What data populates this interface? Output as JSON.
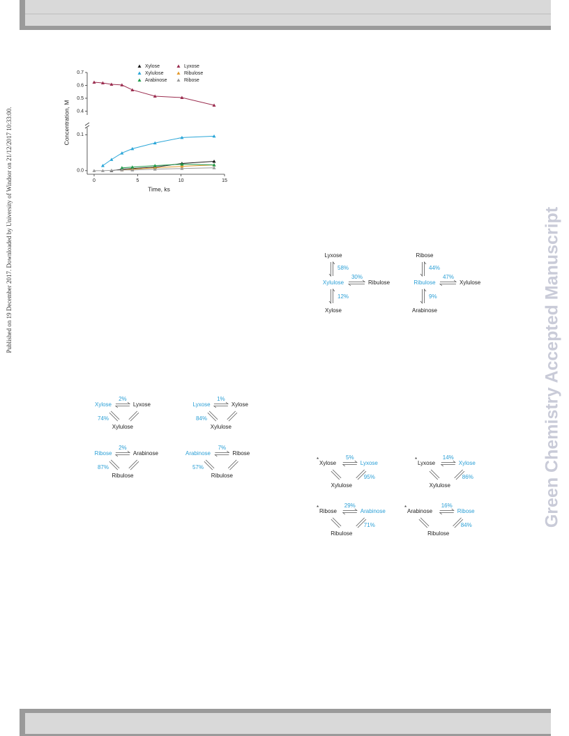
{
  "side_note": "Published on 19 December 2017. Downloaded by University of Windsor on 21/12/2017 10:33:00.",
  "watermark": "Green Chemistry Accepted Manuscript",
  "chart_data": {
    "type": "line",
    "x": [
      0,
      1,
      2,
      3.2,
      4.4,
      7,
      10.1,
      13.8
    ],
    "series": [
      {
        "name": "Xylose",
        "color": "#1a1a1a",
        "values": [
          null,
          null,
          0,
          0.004,
          0.006,
          0.01,
          0.02,
          0.026
        ]
      },
      {
        "name": "Lyxose",
        "color": "#9b2d4f",
        "values": [
          0.624,
          0.619,
          0.608,
          0.603,
          0.565,
          0.516,
          0.505,
          0.446
        ]
      },
      {
        "name": "Xylulose",
        "color": "#2aa6d8",
        "values": [
          null,
          0.014,
          0.031,
          0.049,
          0.061,
          0.077,
          0.092,
          0.096
        ]
      },
      {
        "name": "Ribulose",
        "color": "#e39a2d",
        "values": [
          null,
          null,
          null,
          0.002,
          0.004,
          0.008,
          0.012,
          0.016
        ]
      },
      {
        "name": "Arabinose",
        "color": "#1f9a4a",
        "values": [
          null,
          null,
          null,
          0.008,
          0.01,
          0.014,
          0.018,
          0.016
        ]
      },
      {
        "name": "Ribose",
        "color": "#9a9a9a",
        "values": [
          0,
          0,
          0.001,
          0.002,
          0.002,
          0.004,
          0.006,
          0.008
        ]
      }
    ],
    "xlabel": "Time, ks",
    "ylabel": "Concentration, M",
    "xlim": [
      -0.8,
      15
    ],
    "xticks": [
      0,
      5,
      10,
      15
    ],
    "ylim": [
      -0.01,
      0.7
    ],
    "ybreak": [
      0.12,
      0.37
    ],
    "yticks": [
      {
        "value": 0,
        "label": "0.0"
      },
      0.1,
      0.4,
      0.5,
      0.6,
      0.7
    ]
  },
  "schemes": [
    {
      "top": "Lyxose",
      "top_pct": "58%",
      "center": "Xylulose",
      "right_pct": "30%",
      "right": "Ribulose",
      "bottom_pct": "12%",
      "bottom": "Xylose"
    },
    {
      "top": "Ribose",
      "top_pct": "44%",
      "center": "Ribulose",
      "right_pct": "47%",
      "right": "Xylulose",
      "bottom_pct": "9%",
      "bottom": "Arabinose"
    }
  ],
  "triangles": [
    {
      "left": "Xylose",
      "top_pct": "2%",
      "right": "Lyxose",
      "side_pct": "74%",
      "bottom": "Xylulose"
    },
    {
      "left": "Lyxose",
      "top_pct": "1%",
      "right": "Xylose",
      "side_pct": "84%",
      "bottom": "Xylulose"
    },
    {
      "left": "Ribose",
      "top_pct": "2%",
      "right": "Arabinose",
      "side_pct": "87%",
      "bottom": "Ribulose"
    },
    {
      "left": "Arabinose",
      "top_pct": "7%",
      "right": "Ribose",
      "side_pct": "57%",
      "bottom": "Ribulose"
    }
  ],
  "starred_triangles": [
    {
      "mark": "*",
      "left": "Xylose",
      "top_pct": "5%",
      "right": "Lyxose",
      "side_pct": "95%",
      "bottom": "Xylulose"
    },
    {
      "mark": "*",
      "left": "Lyxose",
      "top_pct": "14%",
      "right": "Xylose",
      "side_pct": "86%",
      "bottom": "Xylulose"
    },
    {
      "mark": "*",
      "left": "Ribose",
      "top_pct": "29%",
      "right": "Arabinose",
      "side_pct": "71%",
      "bottom": "Ribulose"
    },
    {
      "mark": "*",
      "left": "Arabinose",
      "top_pct": "16%",
      "right": "Ribose",
      "side_pct": "84%",
      "bottom": "Ribulose"
    }
  ]
}
